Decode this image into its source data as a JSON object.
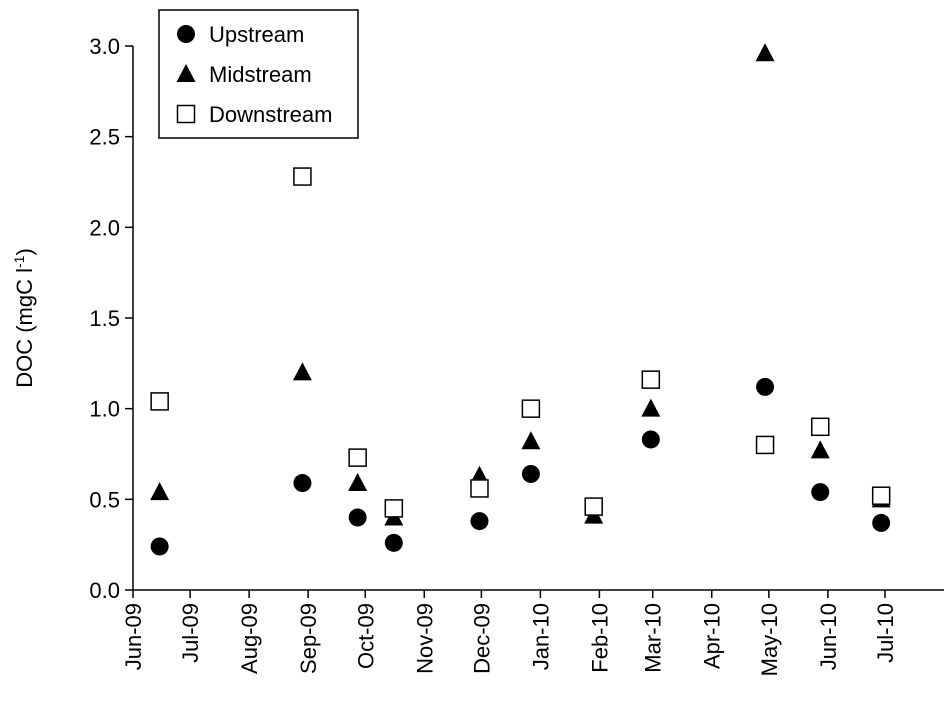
{
  "chart_data": {
    "type": "scatter",
    "title": "",
    "xlabel": "",
    "ylabel": "DOC (mgC l",
    "ylabel_superscript": "-1",
    "ylabel_suffix": ")",
    "ylim": [
      0,
      3.0
    ],
    "yticks": [
      "0.0",
      "0.5",
      "1.0",
      "1.5",
      "2.0",
      "2.5",
      "3.0"
    ],
    "x_ticks": [
      "Jun-09",
      "Jul-09",
      "Aug-09",
      "Sep-09",
      "Oct-09",
      "Nov-09",
      "Dec-09",
      "Jan-10",
      "Feb-10",
      "Mar-10",
      "Apr-10",
      "May-10",
      "Jun-10",
      "Jul-10"
    ],
    "x_range": [
      "2009-06-01",
      "2010-08-01"
    ],
    "grid": false,
    "legend_position": "top-left",
    "series": [
      {
        "name": "Upstream",
        "marker": "circle",
        "color": "#000000",
        "points": [
          {
            "date": "2009-06-15",
            "value": 0.24
          },
          {
            "date": "2009-08-29",
            "value": 0.59
          },
          {
            "date": "2009-09-27",
            "value": 0.4
          },
          {
            "date": "2009-10-16",
            "value": 0.26
          },
          {
            "date": "2009-11-30",
            "value": 0.38
          },
          {
            "date": "2009-12-27",
            "value": 0.64
          },
          {
            "date": "2010-02-28",
            "value": 0.83
          },
          {
            "date": "2010-04-29",
            "value": 1.12
          },
          {
            "date": "2010-05-28",
            "value": 0.54
          },
          {
            "date": "2010-06-29",
            "value": 0.37
          }
        ]
      },
      {
        "name": "Midstream",
        "marker": "triangle",
        "color": "#000000",
        "points": [
          {
            "date": "2009-06-15",
            "value": 0.54
          },
          {
            "date": "2009-08-29",
            "value": 1.2
          },
          {
            "date": "2009-09-27",
            "value": 0.59
          },
          {
            "date": "2009-10-16",
            "value": 0.4
          },
          {
            "date": "2009-11-30",
            "value": 0.63
          },
          {
            "date": "2009-12-27",
            "value": 0.82
          },
          {
            "date": "2010-01-29",
            "value": 0.41
          },
          {
            "date": "2010-02-28",
            "value": 1.0
          },
          {
            "date": "2010-04-29",
            "value": 2.96
          },
          {
            "date": "2010-05-28",
            "value": 0.77
          },
          {
            "date": "2010-06-29",
            "value": 0.5
          }
        ]
      },
      {
        "name": "Downstream",
        "marker": "square-open",
        "color": "#000000",
        "points": [
          {
            "date": "2009-06-15",
            "value": 1.04
          },
          {
            "date": "2009-08-29",
            "value": 2.28
          },
          {
            "date": "2009-09-27",
            "value": 0.73
          },
          {
            "date": "2009-10-16",
            "value": 0.45
          },
          {
            "date": "2009-11-30",
            "value": 0.56
          },
          {
            "date": "2009-12-27",
            "value": 1.0
          },
          {
            "date": "2010-01-29",
            "value": 0.46
          },
          {
            "date": "2010-02-28",
            "value": 1.16
          },
          {
            "date": "2010-04-29",
            "value": 0.8
          },
          {
            "date": "2010-05-28",
            "value": 0.9
          },
          {
            "date": "2010-06-29",
            "value": 0.52
          }
        ]
      }
    ]
  }
}
